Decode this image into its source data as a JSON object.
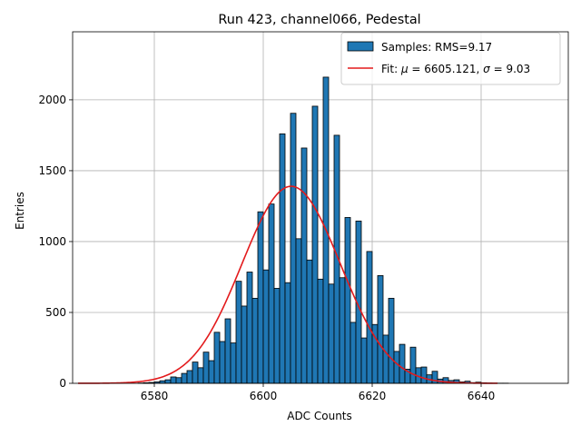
{
  "chart_data": {
    "type": "bar",
    "title": "Run 423, channel066, Pedestal",
    "xlabel": "ADC Counts",
    "ylabel": "Entries",
    "xlim": [
      6565,
      6656
    ],
    "ylim": [
      0,
      2480
    ],
    "x_ticks": [
      6580,
      6600,
      6620,
      6640
    ],
    "y_ticks": [
      0,
      500,
      1000,
      1500,
      2000
    ],
    "grid": true,
    "legend": {
      "placement": "top-right",
      "hist_label": "Samples: RMS=9.17",
      "fit_label_prefix": "Fit: ",
      "fit_label_mu": "μ",
      "fit_label_mid": " = 6605.121, ",
      "fit_label_sigma": "σ",
      "fit_label_suffix": " = 9.03"
    },
    "histogram": {
      "name": "Samples: RMS=9.17",
      "color": "#1f77b4",
      "edgecolor": "#000000",
      "bin_edges_start": 6566,
      "bin_width": 1,
      "values": [
        0,
        0,
        0,
        0,
        0,
        0,
        0,
        0,
        0,
        0,
        0,
        2,
        4,
        6,
        10,
        18,
        25,
        45,
        40,
        70,
        90,
        150,
        110,
        220,
        160,
        360,
        295,
        455,
        285,
        720,
        545,
        785,
        600,
        1210,
        800,
        1265,
        670,
        1760,
        710,
        1905,
        1020,
        1660,
        870,
        1955,
        735,
        2160,
        700,
        1750,
        745,
        1170,
        430,
        1145,
        320,
        930,
        415,
        760,
        340,
        600,
        225,
        275,
        100,
        255,
        110,
        115,
        60,
        85,
        30,
        40,
        20,
        25,
        10,
        15,
        5,
        8,
        4,
        2,
        1,
        1,
        1,
        0,
        0,
        0,
        0,
        0,
        0,
        0
      ]
    },
    "fit": {
      "name": "Fit",
      "color": "#e31a1c",
      "mu": 6605.121,
      "sigma": 9.03,
      "amplitude": 1390,
      "x_range": [
        6566,
        6643
      ]
    }
  }
}
